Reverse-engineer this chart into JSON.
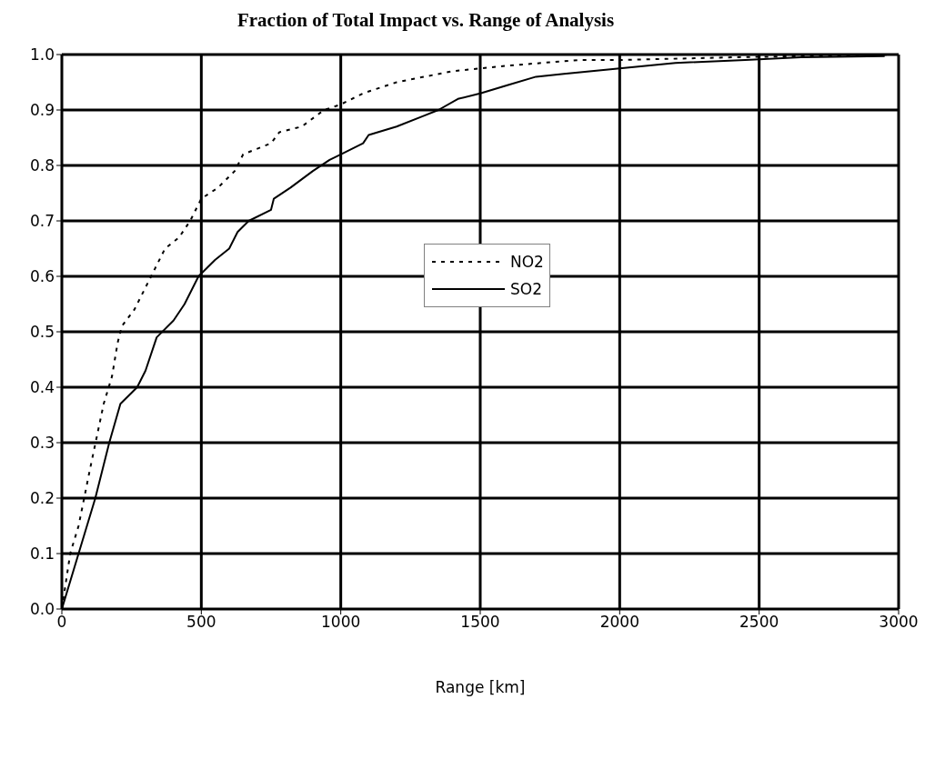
{
  "chart_data": {
    "type": "line",
    "title": "Fraction of Total Impact vs. Range of Analysis",
    "xlabel": "Range  [km]",
    "xlim": [
      0,
      3000
    ],
    "xticks": [
      0,
      500,
      1000,
      1500,
      2000,
      2500,
      3000
    ],
    "ylim": [
      0,
      1
    ],
    "yticks": [
      {
        "value": 0,
        "label": "0.0"
      },
      0.1,
      0.2,
      0.3,
      0.4,
      0.5,
      0.6,
      0.7,
      0.8,
      0.9,
      {
        "value": 1,
        "label": "1.0"
      }
    ],
    "grid": true,
    "legend": "right",
    "marker": "none",
    "series": [
      {
        "name": "NO2",
        "color": "#000000",
        "line_style": "dotted",
        "x": [
          0,
          30,
          60,
          100,
          150,
          180,
          200,
          215,
          260,
          300,
          330,
          370,
          420,
          460,
          500,
          560,
          620,
          650,
          750,
          780,
          860,
          940,
          1000,
          1080,
          1200,
          1300,
          1400,
          1500,
          1600,
          1850,
          2000,
          2400,
          3000
        ],
        "values": [
          0,
          0.1,
          0.15,
          0.25,
          0.37,
          0.42,
          0.48,
          0.51,
          0.54,
          0.58,
          0.61,
          0.65,
          0.67,
          0.7,
          0.74,
          0.76,
          0.79,
          0.82,
          0.84,
          0.86,
          0.87,
          0.9,
          0.91,
          0.93,
          0.95,
          0.96,
          0.97,
          0.975,
          0.98,
          0.99,
          0.99,
          0.995,
          1
        ]
      },
      {
        "name": "SO2",
        "color": "#000000",
        "line_style": "solid",
        "x": [
          0,
          60,
          120,
          170,
          210,
          270,
          300,
          340,
          400,
          440,
          490,
          550,
          600,
          630,
          670,
          750,
          760,
          820,
          900,
          960,
          1000,
          1080,
          1100,
          1200,
          1300,
          1350,
          1420,
          1500,
          1600,
          1700,
          1800,
          1900,
          2000,
          2200,
          2450,
          2650,
          2950
        ],
        "values": [
          0,
          0.1,
          0.2,
          0.3,
          0.37,
          0.4,
          0.43,
          0.49,
          0.52,
          0.55,
          0.6,
          0.63,
          0.65,
          0.68,
          0.7,
          0.72,
          0.74,
          0.76,
          0.79,
          0.81,
          0.82,
          0.84,
          0.855,
          0.87,
          0.89,
          0.9,
          0.92,
          0.93,
          0.945,
          0.96,
          0.965,
          0.97,
          0.975,
          0.985,
          0.99,
          0.995,
          0.997
        ]
      }
    ]
  }
}
